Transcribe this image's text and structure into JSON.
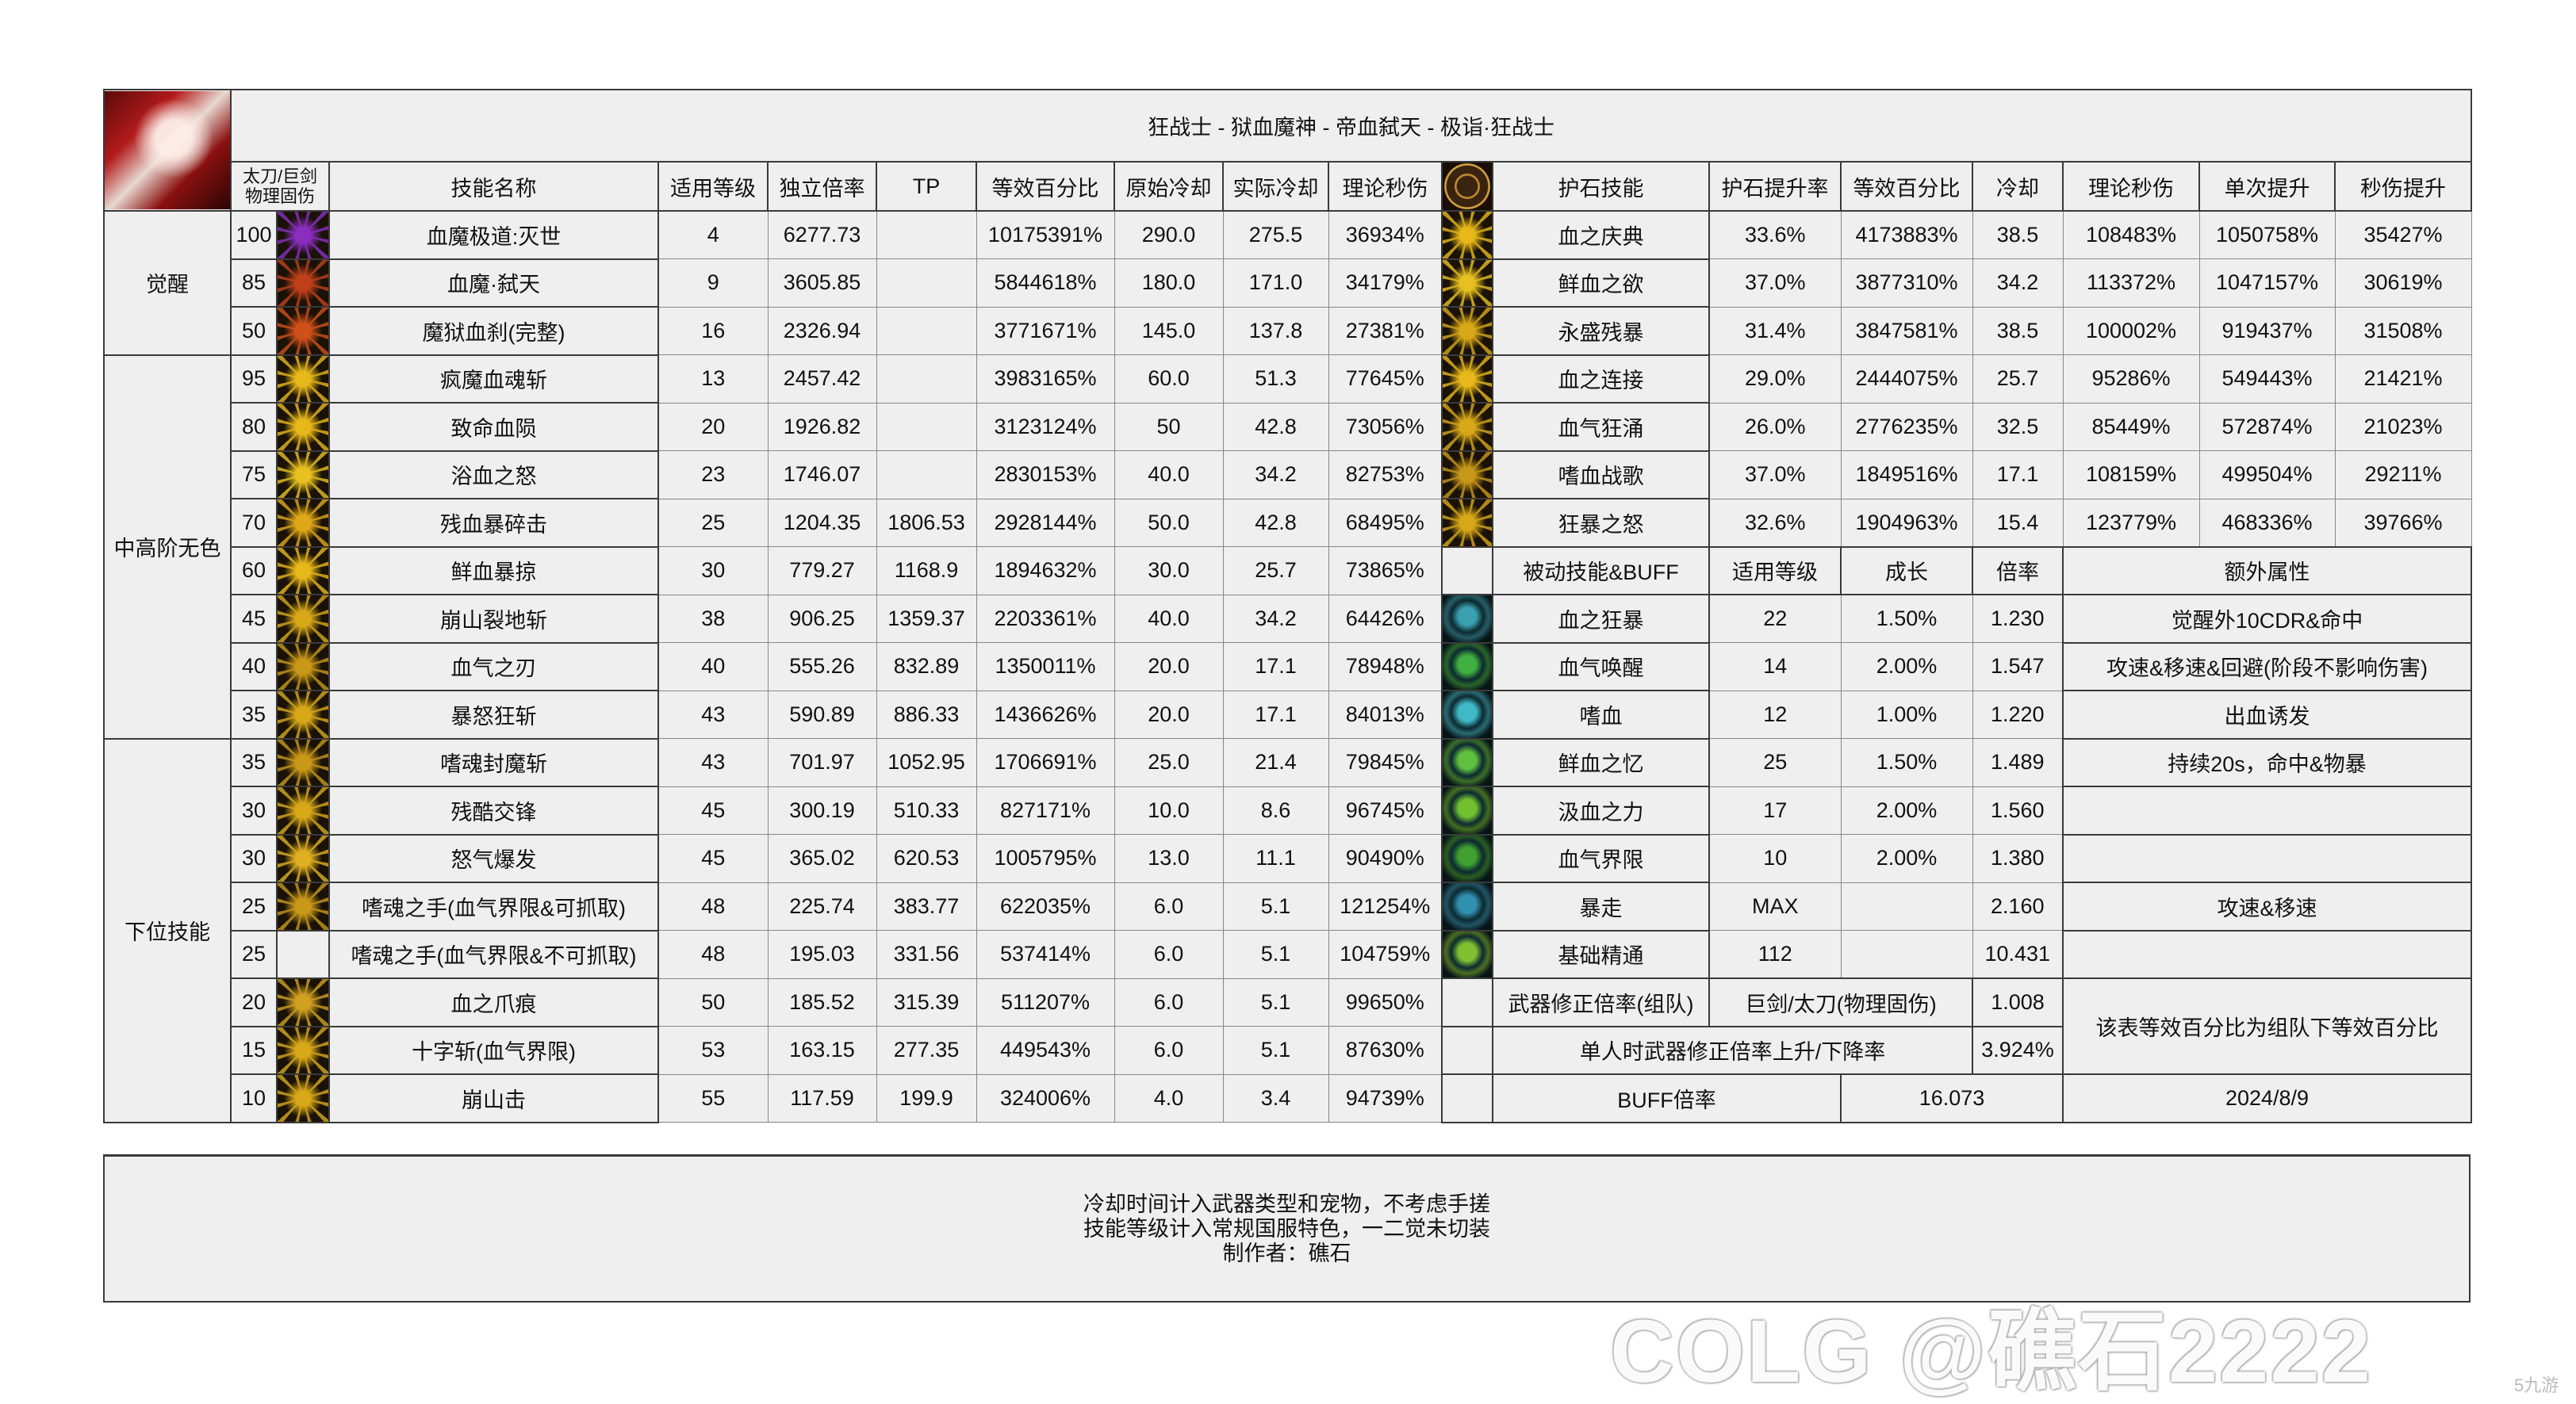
{
  "title": "狂战士 - 狱血魔神 - 帝血弑天 - 极诣·狂战士",
  "headers": {
    "level_icon": "太刀/巨剑 物理固伤",
    "skill_name": "技能名称",
    "applicable_level": "适用等级",
    "independent_ratio": "独立倍率",
    "tp": "TP",
    "equivalent_pct": "等效百分比",
    "original_cd": "原始冷却",
    "actual_cd": "实际冷却",
    "theoretical_dps": "理论秒伤",
    "talisman_skill": "护石技能",
    "talisman_rate": "护石提升率",
    "talisman_pct": "等效百分比",
    "cd": "冷却",
    "talisman_dps": "理论秒伤",
    "single_up": "单次提升",
    "dps_up": "秒伤提升"
  },
  "categories": [
    {
      "label": "觉醒",
      "rows": 3
    },
    {
      "label": "中高阶无色",
      "rows": 8
    },
    {
      "label": "下位技能",
      "rows": 8
    }
  ],
  "skills": [
    {
      "level": "100",
      "icon": "awakening-3-icon",
      "color": "#8a2ec0",
      "name": "血魔极道:灭世",
      "lv": "4",
      "ratio": "6277.73",
      "tp": "",
      "pct": "10175391%",
      "cd": "290.0",
      "real_cd": "275.5",
      "dps": "36934%"
    },
    {
      "level": "85",
      "icon": "awakening-2-icon",
      "color": "#c0401a",
      "name": "血魔·弑天",
      "lv": "9",
      "ratio": "3605.85",
      "tp": "",
      "pct": "5844618%",
      "cd": "180.0",
      "real_cd": "171.0",
      "dps": "34179%"
    },
    {
      "level": "50",
      "icon": "awakening-1-icon",
      "color": "#d0501a",
      "name": "魔狱血刹(完整)",
      "lv": "16",
      "ratio": "2326.94",
      "tp": "",
      "pct": "3771671%",
      "cd": "145.0",
      "real_cd": "137.8",
      "dps": "27381%"
    },
    {
      "level": "95",
      "icon": "skill-burst-icon",
      "color": "#e8b81a",
      "name": "疯魔血魂斩",
      "lv": "13",
      "ratio": "2457.42",
      "tp": "",
      "pct": "3983165%",
      "cd": "60.0",
      "real_cd": "51.3",
      "dps": "77645%"
    },
    {
      "level": "80",
      "icon": "skill-burst-icon",
      "color": "#e8b81a",
      "name": "致命血陨",
      "lv": "20",
      "ratio": "1926.82",
      "tp": "",
      "pct": "3123124%",
      "cd": "50",
      "real_cd": "42.8",
      "dps": "73056%"
    },
    {
      "level": "75",
      "icon": "skill-burst-icon",
      "color": "#e8c020",
      "name": "浴血之怒",
      "lv": "23",
      "ratio": "1746.07",
      "tp": "",
      "pct": "2830153%",
      "cd": "40.0",
      "real_cd": "34.2",
      "dps": "82753%"
    },
    {
      "level": "70",
      "icon": "skill-burst-icon",
      "color": "#e0a818",
      "name": "残血暴碎击",
      "lv": "25",
      "ratio": "1204.35",
      "tp": "1806.53",
      "pct": "2928144%",
      "cd": "50.0",
      "real_cd": "42.8",
      "dps": "68495%"
    },
    {
      "level": "60",
      "icon": "skill-flame-icon",
      "color": "#e8b81a",
      "name": "鲜血暴掠",
      "lv": "30",
      "ratio": "779.27",
      "tp": "1168.9",
      "pct": "1894632%",
      "cd": "30.0",
      "real_cd": "25.7",
      "dps": "73865%"
    },
    {
      "level": "45",
      "icon": "skill-quake-icon",
      "color": "#d8a818",
      "name": "崩山裂地斩",
      "lv": "38",
      "ratio": "906.25",
      "tp": "1359.37",
      "pct": "2203361%",
      "cd": "40.0",
      "real_cd": "34.2",
      "dps": "64426%"
    },
    {
      "level": "40",
      "icon": "skill-blade-icon",
      "color": "#c89818",
      "name": "血气之刃",
      "lv": "40",
      "ratio": "555.26",
      "tp": "832.89",
      "pct": "1350011%",
      "cd": "20.0",
      "real_cd": "17.1",
      "dps": "78948%"
    },
    {
      "level": "35",
      "icon": "skill-slash-icon",
      "color": "#d8a818",
      "name": "暴怒狂斩",
      "lv": "43",
      "ratio": "590.89",
      "tp": "886.33",
      "pct": "1436626%",
      "cd": "20.0",
      "real_cd": "17.1",
      "dps": "84013%"
    },
    {
      "level": "35",
      "icon": "skill-swirl-icon",
      "color": "#c89818",
      "name": "嗜魂封魔斩",
      "lv": "43",
      "ratio": "701.97",
      "tp": "1052.95",
      "pct": "1706691%",
      "cd": "25.0",
      "real_cd": "21.4",
      "dps": "79845%"
    },
    {
      "level": "30",
      "icon": "skill-arc-icon",
      "color": "#d8a818",
      "name": "残酷交锋",
      "lv": "45",
      "ratio": "300.19",
      "tp": "510.33",
      "pct": "827171%",
      "cd": "10.0",
      "real_cd": "8.6",
      "dps": "96745%"
    },
    {
      "level": "30",
      "icon": "skill-star-icon",
      "color": "#e0b020",
      "name": "怒气爆发",
      "lv": "45",
      "ratio": "365.02",
      "tp": "620.53",
      "pct": "1005795%",
      "cd": "13.0",
      "real_cd": "11.1",
      "dps": "90490%"
    },
    {
      "level": "25",
      "icon": "skill-hand-icon",
      "color": "#c89818",
      "name": "嗜魂之手(血气界限&可抓取)",
      "lv": "48",
      "ratio": "225.74",
      "tp": "383.77",
      "pct": "622035%",
      "cd": "6.0",
      "real_cd": "5.1",
      "dps": "121254%"
    },
    {
      "level": "25",
      "icon": "",
      "color": "",
      "name": "嗜魂之手(血气界限&不可抓取)",
      "lv": "48",
      "ratio": "195.03",
      "tp": "331.56",
      "pct": "537414%",
      "cd": "6.0",
      "real_cd": "5.1",
      "dps": "104759%"
    },
    {
      "level": "20",
      "icon": "skill-claw-icon",
      "color": "#d0a020",
      "name": "血之爪痕",
      "lv": "50",
      "ratio": "185.52",
      "tp": "315.39",
      "pct": "511207%",
      "cd": "6.0",
      "real_cd": "5.1",
      "dps": "99650%"
    },
    {
      "level": "15",
      "icon": "skill-cross-icon",
      "color": "#d8a818",
      "name": "十字斩(血气界限)",
      "lv": "53",
      "ratio": "163.15",
      "tp": "277.35",
      "pct": "449543%",
      "cd": "6.0",
      "real_cd": "5.1",
      "dps": "87630%"
    },
    {
      "level": "10",
      "icon": "skill-crash-icon",
      "color": "#d8a818",
      "name": "崩山击",
      "lv": "55",
      "ratio": "117.59",
      "tp": "199.9",
      "pct": "324006%",
      "cd": "4.0",
      "real_cd": "3.4",
      "dps": "94739%"
    }
  ],
  "talismans": [
    {
      "icon": "talisman-skill-icon",
      "color": "#e8b81a",
      "name": "血之庆典",
      "rate": "33.6%",
      "pct": "4173883%",
      "cd": "38.5",
      "dps": "108483%",
      "single": "1050758%",
      "dps_up": "35427%"
    },
    {
      "icon": "talisman-skill-icon",
      "color": "#e8c020",
      "name": "鲜血之欲",
      "rate": "37.0%",
      "pct": "3877310%",
      "cd": "34.2",
      "dps": "113372%",
      "single": "1047157%",
      "dps_up": "30619%"
    },
    {
      "icon": "talisman-skill-icon",
      "color": "#d8a818",
      "name": "永盛残暴",
      "rate": "31.4%",
      "pct": "3847581%",
      "cd": "38.5",
      "dps": "100002%",
      "single": "919437%",
      "dps_up": "31508%"
    },
    {
      "icon": "talisman-skill-icon",
      "color": "#e8b81a",
      "name": "血之连接",
      "rate": "29.0%",
      "pct": "2444075%",
      "cd": "25.7",
      "dps": "95286%",
      "single": "549443%",
      "dps_up": "21421%"
    },
    {
      "icon": "talisman-skill-icon",
      "color": "#d8a818",
      "name": "血气狂涌",
      "rate": "26.0%",
      "pct": "2776235%",
      "cd": "32.5",
      "dps": "85449%",
      "single": "572874%",
      "dps_up": "21023%"
    },
    {
      "icon": "talisman-skill-icon",
      "color": "#c89818",
      "name": "嗜血战歌",
      "rate": "37.0%",
      "pct": "1849516%",
      "cd": "17.1",
      "dps": "108159%",
      "single": "499504%",
      "dps_up": "29211%"
    },
    {
      "icon": "talisman-skill-icon",
      "color": "#d8a818",
      "name": "狂暴之怒",
      "rate": "32.6%",
      "pct": "1904963%",
      "cd": "15.4",
      "dps": "123779%",
      "single": "468336%",
      "dps_up": "39766%"
    }
  ],
  "passive_headers": {
    "name": "被动技能&BUFF",
    "level": "适用等级",
    "growth": "成长",
    "ratio": "倍率",
    "extra": "额外属性"
  },
  "passives": [
    {
      "icon": "eye-passive-icon",
      "color": "#3aa0b0",
      "name": "血之狂暴",
      "level": "22",
      "growth": "1.50%",
      "ratio": "1.230",
      "extra": "觉醒外10CDR&命中"
    },
    {
      "icon": "cross-passive-icon",
      "color": "#40b040",
      "name": "血气唤醒",
      "level": "14",
      "growth": "2.00%",
      "ratio": "1.547",
      "extra": "攻速&移速&回避(阶段不影响伤害)"
    },
    {
      "icon": "fang-passive-icon",
      "color": "#40b8c8",
      "name": "嗜血",
      "level": "12",
      "growth": "1.00%",
      "ratio": "1.220",
      "extra": "出血诱发"
    },
    {
      "icon": "figure-passive-icon",
      "color": "#60c040",
      "name": "鲜血之忆",
      "level": "25",
      "growth": "1.50%",
      "ratio": "1.489",
      "extra": "持续20s，命中&物暴"
    },
    {
      "icon": "drop-passive-icon",
      "color": "#70c030",
      "name": "汲血之力",
      "level": "17",
      "growth": "2.00%",
      "ratio": "1.560",
      "extra": ""
    },
    {
      "icon": "mask-passive-icon",
      "color": "#40a030",
      "name": "血气界限",
      "level": "10",
      "growth": "2.00%",
      "ratio": "1.380",
      "extra": ""
    },
    {
      "icon": "frenzy-passive-icon",
      "color": "#3090b0",
      "name": "暴走",
      "level": "MAX",
      "growth": "",
      "ratio": "2.160",
      "extra": "攻速&移速"
    },
    {
      "icon": "mastery-passive-icon",
      "color": "#80c030",
      "name": "基础精通",
      "level": "112",
      "growth": "",
      "ratio": "10.431",
      "extra": ""
    }
  ],
  "weapon": {
    "label": "武器修正倍率(组队)",
    "type": "巨剑/太刀(物理固伤)",
    "ratio": "1.008",
    "solo_label": "单人时武器修正倍率上升/下降率",
    "solo_value": "3.924%",
    "note": "该表等效百分比为组队下等效百分比"
  },
  "buff": {
    "label": "BUFF倍率",
    "value": "16.073",
    "date": "2024/8/9"
  },
  "footer": [
    "冷却时间计入武器类型和宠物，不考虑手搓",
    "技能等级计入常规国服特色，一二觉未切装",
    "制作者：礁石"
  ],
  "watermark": "COLG @礁石2222",
  "watermark_small": "5九游"
}
